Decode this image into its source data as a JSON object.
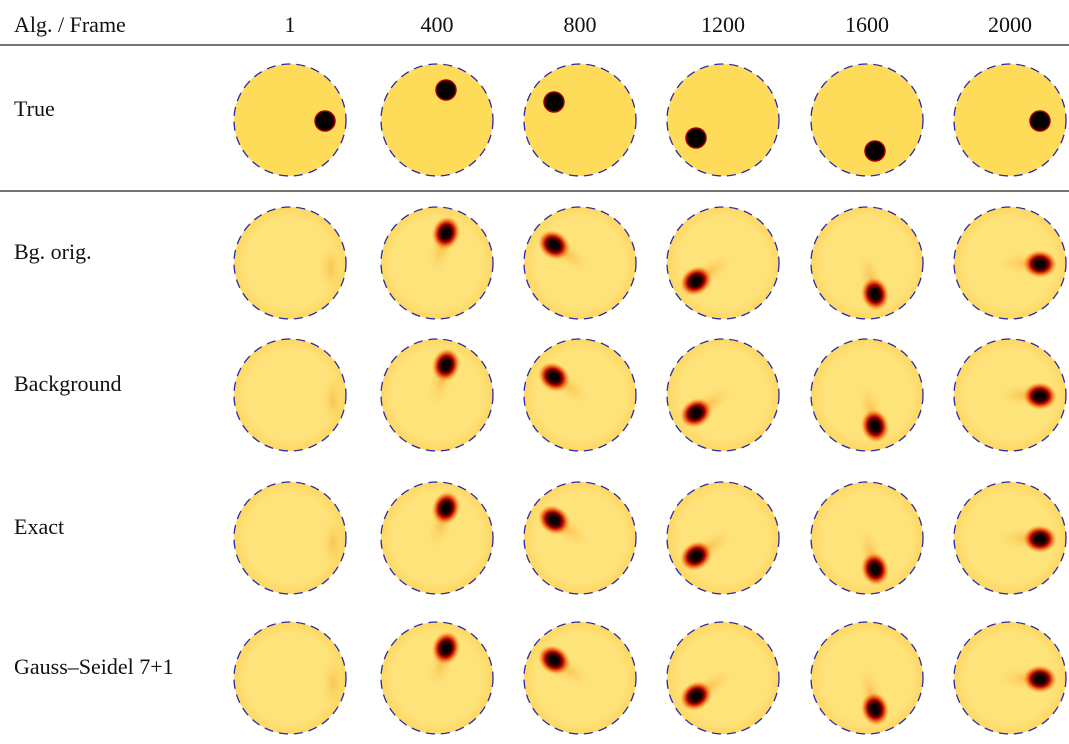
{
  "table": {
    "header": [
      "Alg. / Frame",
      "1",
      "400",
      "800",
      "1200",
      "1600",
      "2000"
    ],
    "rows": [
      {
        "label": "True"
      },
      {
        "label": "Bg. orig."
      },
      {
        "label": "Background"
      },
      {
        "label": "Exact"
      },
      {
        "label": "Gauss–Seidel 7+1"
      }
    ]
  }
}
